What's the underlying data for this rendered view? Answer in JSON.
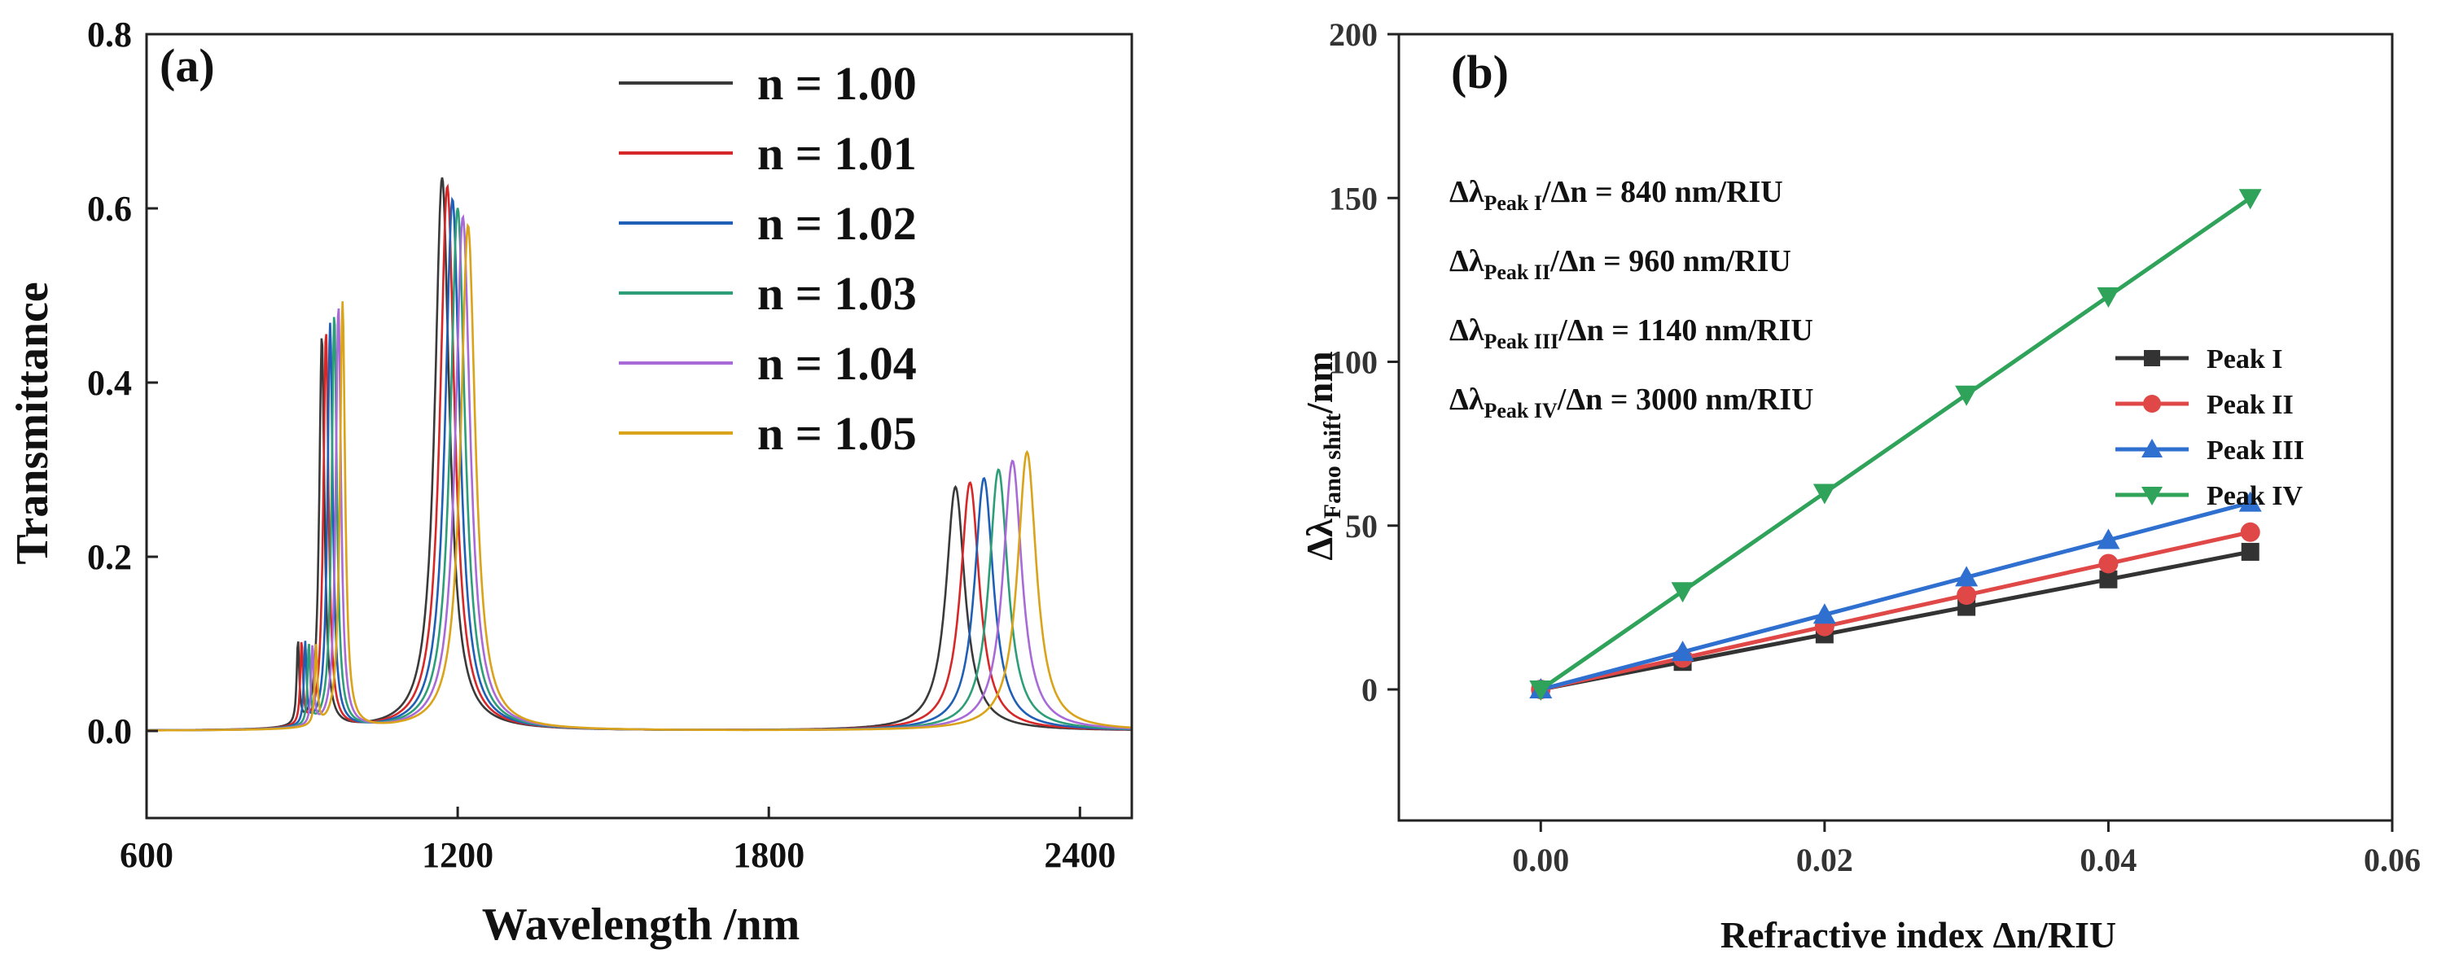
{
  "chart_data": [
    {
      "type": "line",
      "panel_label": "(a)",
      "xlabel": "Wavelength /nm",
      "ylabel": "Transmittance",
      "xlim": [
        600,
        2500
      ],
      "ylim": [
        -0.1,
        0.8
      ],
      "x_ticks": [
        600,
        1200,
        1800,
        2400
      ],
      "x_tick_labels": [
        "600",
        "1200",
        "1800",
        "2400"
      ],
      "y_ticks": [
        0.0,
        0.2,
        0.4,
        0.6,
        0.8
      ],
      "y_tick_labels": [
        "0.0",
        "0.2",
        "0.4",
        "0.6",
        "0.8"
      ],
      "legend_position": "top-right",
      "series": [
        {
          "name": "n = 1.00",
          "color": "#3a3a3a",
          "peaks": [
            {
              "center": 892,
              "amp": 0.095,
              "hw": 3
            },
            {
              "center": 938,
              "amp": 0.45,
              "hw": 6
            },
            {
              "center": 1170,
              "amp": 0.635,
              "hw": 17
            },
            {
              "center": 2160,
              "amp": 0.28,
              "hw": 22
            }
          ]
        },
        {
          "name": "n = 1.01",
          "color": "#d62828",
          "peaks": [
            {
              "center": 899,
              "amp": 0.095,
              "hw": 3
            },
            {
              "center": 946,
              "amp": 0.455,
              "hw": 6
            },
            {
              "center": 1180,
              "amp": 0.625,
              "hw": 17
            },
            {
              "center": 2188,
              "amp": 0.285,
              "hw": 22
            }
          ]
        },
        {
          "name": "n = 1.02",
          "color": "#1f5fb5",
          "peaks": [
            {
              "center": 906,
              "amp": 0.094,
              "hw": 3
            },
            {
              "center": 954,
              "amp": 0.465,
              "hw": 6
            },
            {
              "center": 1190,
              "amp": 0.61,
              "hw": 17
            },
            {
              "center": 2215,
              "amp": 0.29,
              "hw": 22
            }
          ]
        },
        {
          "name": "n = 1.03",
          "color": "#2e9e78",
          "peaks": [
            {
              "center": 913,
              "amp": 0.093,
              "hw": 3
            },
            {
              "center": 962,
              "amp": 0.475,
              "hw": 6
            },
            {
              "center": 1200,
              "amp": 0.6,
              "hw": 17
            },
            {
              "center": 2243,
              "amp": 0.3,
              "hw": 22
            }
          ]
        },
        {
          "name": "n = 1.04",
          "color": "#a86ad6",
          "peaks": [
            {
              "center": 920,
              "amp": 0.092,
              "hw": 3
            },
            {
              "center": 970,
              "amp": 0.485,
              "hw": 6
            },
            {
              "center": 1210,
              "amp": 0.59,
              "hw": 17
            },
            {
              "center": 2270,
              "amp": 0.31,
              "hw": 22
            }
          ]
        },
        {
          "name": "n = 1.05",
          "color": "#d9a31a",
          "peaks": [
            {
              "center": 927,
              "amp": 0.091,
              "hw": 3
            },
            {
              "center": 978,
              "amp": 0.49,
              "hw": 6
            },
            {
              "center": 1220,
              "amp": 0.58,
              "hw": 17
            },
            {
              "center": 2298,
              "amp": 0.32,
              "hw": 22
            }
          ]
        }
      ]
    },
    {
      "type": "line",
      "panel_label": "(b)",
      "xlabel": "Refractive index Δn/RIU",
      "ylabel_main": "Δλ",
      "ylabel_sub": "Fano shift",
      "ylabel_tail": "/nm",
      "xlim": [
        -0.01,
        0.06
      ],
      "ylim": [
        -40,
        200
      ],
      "x_ticks": [
        0.0,
        0.02,
        0.04,
        0.06
      ],
      "x_tick_labels": [
        "0.00",
        "0.02",
        "0.04",
        "0.06"
      ],
      "y_ticks": [
        0,
        50,
        100,
        150,
        200
      ],
      "y_tick_labels": [
        "0",
        "50",
        "100",
        "150",
        "200"
      ],
      "legend_position": "right",
      "x": [
        0.0,
        0.01,
        0.02,
        0.03,
        0.04,
        0.05
      ],
      "series": [
        {
          "name": "Peak I",
          "color": "#333333",
          "marker": "square",
          "values": [
            0,
            8.4,
            16.8,
            25.2,
            33.6,
            42
          ]
        },
        {
          "name": "Peak II",
          "color": "#e04848",
          "marker": "circle",
          "values": [
            0,
            9.6,
            19.2,
            28.8,
            38.4,
            48
          ]
        },
        {
          "name": "Peak III",
          "color": "#2f6fcf",
          "marker": "triangle-up",
          "values": [
            0,
            11.4,
            22.8,
            34.2,
            45.6,
            57
          ]
        },
        {
          "name": "Peak IV",
          "color": "#2fa35a",
          "marker": "triangle-down",
          "values": [
            0,
            30,
            60,
            90,
            120,
            150
          ]
        }
      ],
      "annotations": [
        {
          "main": "Δλ",
          "sub": "Peak I",
          "tail": "/Δn = 840 nm/RIU"
        },
        {
          "main": "Δλ",
          "sub": "Peak II",
          "tail": "/Δn = 960 nm/RIU"
        },
        {
          "main": "Δλ",
          "sub": "Peak III",
          "tail": "/Δn = 1140 nm/RIU"
        },
        {
          "main": "Δλ",
          "sub": "Peak IV",
          "tail": "/Δn = 3000 nm/RIU"
        }
      ]
    }
  ]
}
